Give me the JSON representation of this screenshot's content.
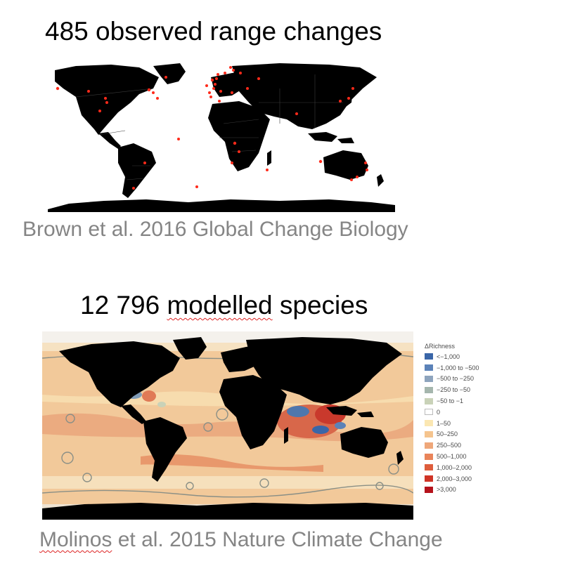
{
  "panel_top": {
    "title": "485 observed range changes",
    "caption": "Brown et al. 2016 Global Change Biology",
    "colors": {
      "land": "#000000",
      "ocean": "#ffffff",
      "points": "#ff2a1a"
    }
  },
  "panel_bottom": {
    "title_number": "12 796",
    "title_word": "modelled",
    "title_rest": "species",
    "caption_word": "Molinos",
    "caption_rest": "et al. 2015 Nature Climate Change",
    "legend": {
      "title": "ΔRichness",
      "items": [
        {
          "label": "<−1,000",
          "color": "#3a66a8"
        },
        {
          "label": "−1,000 to −500",
          "color": "#5b82b8"
        },
        {
          "label": "−500 to −250",
          "color": "#8ea4bd"
        },
        {
          "label": "−250 to −50",
          "color": "#a5b6ad"
        },
        {
          "label": "−50 to −1",
          "color": "#c9d2b8"
        },
        {
          "label": "0",
          "color": "#ffffff"
        },
        {
          "label": "1–50",
          "color": "#fbe7b2"
        },
        {
          "label": "50–250",
          "color": "#f5c48e"
        },
        {
          "label": "250–500",
          "color": "#efa77a"
        },
        {
          "label": "500–1,000",
          "color": "#e9845a"
        },
        {
          "label": "1,000–2,000",
          "color": "#de5d3c"
        },
        {
          "label": "2,000–3,000",
          "color": "#cf3426"
        },
        {
          "label": ">3,000",
          "color": "#b5121b"
        }
      ]
    }
  }
}
